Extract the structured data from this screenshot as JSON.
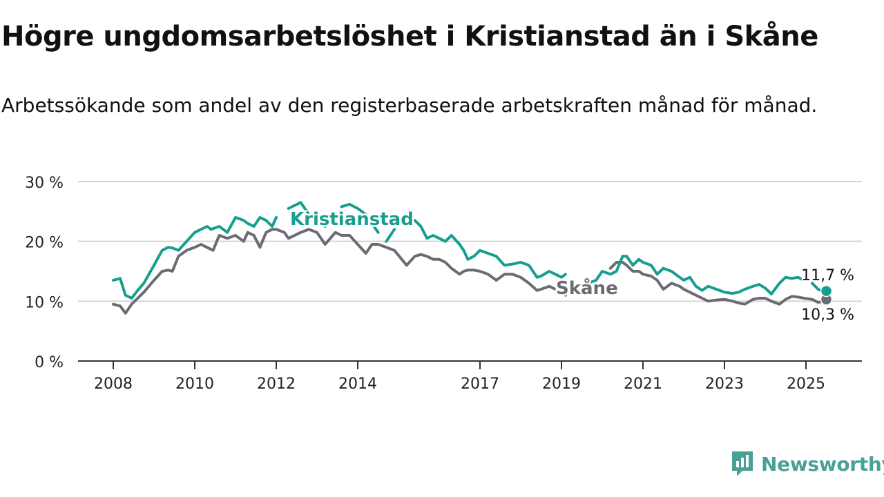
{
  "header": {
    "title": "Högre ungdomsarbetslöshet i Kristianstad än i Skåne",
    "subtitle": "Arbetssökande som andel av den registerbaserade arbetskraften månad för månad."
  },
  "brand": {
    "label": "Newsworthy",
    "icon": "newsworthy-logo-icon",
    "color": "#4aa095"
  },
  "chart_data": {
    "type": "line",
    "title": "Högre ungdomsarbetslöshet i Kristianstad än i Skåne",
    "subtitle": "Arbetssökande som andel av den registerbaserade arbetskraften månad för månad.",
    "xlabel": "",
    "ylabel": "",
    "x_ticks": [
      "2008",
      "2010",
      "2012",
      "2014",
      "2017",
      "2019",
      "2021",
      "2023",
      "2025"
    ],
    "y_ticks": [
      "0 %",
      "10 %",
      "20 %",
      "30 %"
    ],
    "y_tick_values": [
      0,
      10,
      20,
      30
    ],
    "ylim": [
      0,
      30
    ],
    "xlim": [
      2007.15,
      2026.4
    ],
    "grid": true,
    "legend": "inline labels",
    "series": [
      {
        "name": "Kristianstad",
        "color": "#169e8e",
        "end_label": "11,7 %",
        "x": [
          2008.0,
          2008.17,
          2008.3,
          2008.45,
          2008.6,
          2008.75,
          2009.0,
          2009.2,
          2009.35,
          2009.45,
          2009.6,
          2009.8,
          2010.0,
          2010.15,
          2010.3,
          2010.4,
          2010.6,
          2010.8,
          2011.0,
          2011.2,
          2011.3,
          2011.45,
          2011.6,
          2011.75,
          2011.9,
          2012.0,
          2012.2,
          2012.3,
          2012.6,
          2012.8,
          2013.0,
          2013.2,
          2013.45,
          2013.6,
          2013.8,
          2014.0,
          2014.2,
          2014.35,
          2014.5,
          2014.7,
          2014.9,
          2015.2,
          2015.4,
          2015.55,
          2015.7,
          2015.85,
          2016.0,
          2016.15,
          2016.3,
          2016.5,
          2016.6,
          2016.7,
          2016.85,
          2017.0,
          2017.2,
          2017.4,
          2017.6,
          2017.8,
          2018.0,
          2018.2,
          2018.4,
          2018.5,
          2018.7,
          2018.85,
          2019.0,
          2019.1,
          2019.3,
          2019.5,
          2019.65,
          2019.85,
          2020.0,
          2020.2,
          2020.35,
          2020.5,
          2020.6,
          2020.75,
          2020.9,
          2021.0,
          2021.2,
          2021.35,
          2021.5,
          2021.7,
          2021.9,
          2022.0,
          2022.15,
          2022.3,
          2022.45,
          2022.6,
          2022.8,
          2023.0,
          2023.2,
          2023.35,
          2023.5,
          2023.7,
          2023.85,
          2024.0,
          2024.15,
          2024.35,
          2024.5,
          2024.65,
          2024.8,
          2024.95,
          2025.15,
          2025.3,
          2025.45,
          2025.5
        ],
        "y": [
          13.5,
          13.8,
          11.0,
          10.5,
          11.8,
          13.0,
          16.0,
          18.5,
          19.0,
          18.9,
          18.5,
          20.0,
          21.5,
          22.0,
          22.5,
          22.0,
          22.5,
          21.5,
          24.0,
          23.5,
          23.0,
          22.5,
          24.0,
          23.5,
          22.5,
          24.0,
          25.0,
          25.5,
          26.5,
          24.5,
          24.0,
          22.5,
          26.0,
          25.8,
          26.2,
          25.5,
          24.5,
          23.0,
          21.5,
          20.0,
          22.0,
          22.5,
          23.5,
          22.5,
          20.5,
          21.0,
          20.5,
          20.0,
          21.0,
          19.5,
          18.5,
          17.0,
          17.5,
          18.5,
          18.0,
          17.5,
          16.0,
          16.2,
          16.5,
          16.0,
          14.0,
          14.2,
          15.0,
          14.5,
          14.0,
          14.5,
          14.2,
          13.8,
          13.0,
          13.5,
          15.0,
          14.5,
          15.0,
          17.5,
          17.5,
          16.0,
          17.0,
          16.5,
          16.0,
          14.5,
          15.5,
          15.0,
          14.0,
          13.5,
          14.0,
          12.5,
          11.8,
          12.5,
          12.0,
          11.5,
          11.3,
          11.5,
          12.0,
          12.5,
          12.8,
          12.2,
          11.2,
          13.0,
          14.0,
          13.8,
          14.0,
          13.5,
          13.0,
          12.0,
          11.5,
          11.7
        ]
      },
      {
        "name": "Skåne",
        "color": "#6b6b73",
        "end_label": "10,3 %",
        "x": [
          2008.0,
          2008.17,
          2008.3,
          2008.45,
          2008.6,
          2008.75,
          2009.0,
          2009.2,
          2009.35,
          2009.45,
          2009.6,
          2009.8,
          2010.0,
          2010.15,
          2010.3,
          2010.45,
          2010.6,
          2010.8,
          2011.0,
          2011.2,
          2011.3,
          2011.45,
          2011.6,
          2011.75,
          2011.9,
          2012.0,
          2012.2,
          2012.3,
          2012.6,
          2012.8,
          2013.0,
          2013.2,
          2013.45,
          2013.6,
          2013.8,
          2014.0,
          2014.2,
          2014.35,
          2014.5,
          2014.7,
          2014.9,
          2015.2,
          2015.4,
          2015.55,
          2015.7,
          2015.85,
          2016.0,
          2016.15,
          2016.3,
          2016.5,
          2016.6,
          2016.7,
          2016.85,
          2017.0,
          2017.2,
          2017.4,
          2017.6,
          2017.8,
          2018.0,
          2018.2,
          2018.4,
          2018.5,
          2018.7,
          2018.85,
          2019.0,
          2019.1,
          2019.3,
          2019.5,
          2019.65,
          2019.85,
          2020.0,
          2020.2,
          2020.35,
          2020.5,
          2020.6,
          2020.75,
          2020.9,
          2021.0,
          2021.2,
          2021.35,
          2021.5,
          2021.7,
          2021.9,
          2022.0,
          2022.15,
          2022.3,
          2022.45,
          2022.6,
          2022.8,
          2023.0,
          2023.2,
          2023.35,
          2023.5,
          2023.7,
          2023.85,
          2024.0,
          2024.15,
          2024.35,
          2024.5,
          2024.65,
          2024.8,
          2024.95,
          2025.15,
          2025.3,
          2025.45,
          2025.5
        ],
        "y": [
          9.5,
          9.2,
          8.0,
          9.5,
          10.5,
          11.5,
          13.5,
          15.0,
          15.2,
          15.0,
          17.5,
          18.5,
          19.0,
          19.5,
          19.0,
          18.5,
          21.0,
          20.5,
          21.0,
          20.0,
          21.5,
          21.0,
          19.0,
          21.5,
          22.0,
          22.0,
          21.5,
          20.5,
          21.5,
          22.0,
          21.5,
          19.5,
          21.5,
          21.0,
          21.0,
          19.5,
          18.0,
          19.5,
          19.5,
          19.0,
          18.5,
          16.0,
          17.5,
          17.8,
          17.5,
          17.0,
          17.0,
          16.5,
          15.5,
          14.5,
          15.0,
          15.2,
          15.2,
          15.0,
          14.5,
          13.5,
          14.5,
          14.5,
          14.0,
          13.0,
          11.8,
          12.0,
          12.5,
          12.0,
          11.5,
          11.0,
          10.5,
          10.0,
          10.2,
          10.5,
          14.5,
          15.5,
          16.5,
          16.5,
          16.0,
          15.0,
          15.0,
          14.5,
          14.2,
          13.5,
          12.0,
          13.0,
          12.5,
          12.0,
          11.5,
          11.0,
          10.5,
          10.0,
          10.2,
          10.3,
          10.0,
          9.7,
          9.5,
          10.3,
          10.5,
          10.5,
          10.0,
          9.5,
          10.3,
          10.8,
          10.7,
          10.5,
          10.3,
          9.8,
          10.0,
          10.3
        ]
      }
    ],
    "gaps": [
      {
        "series": "Kristianstad",
        "from": 2012.05,
        "to": 2012.35
      },
      {
        "series": "Kristianstad",
        "from": 2013.25,
        "to": 2013.65
      },
      {
        "series": "Kristianstad",
        "from": 2014.45,
        "to": 2014.7
      },
      {
        "series": "Kristianstad",
        "from": 2014.95,
        "to": 2015.45
      },
      {
        "series": "Kristianstad",
        "from": 2019.1,
        "to": 2019.7
      },
      {
        "series": "Kristianstad",
        "from": 2024.95,
        "to": 2025.12
      },
      {
        "series": "Skåne",
        "from": 2019.1,
        "to": 2019.45
      },
      {
        "series": "Skåne",
        "from": 2019.55,
        "to": 2020.2
      }
    ]
  }
}
